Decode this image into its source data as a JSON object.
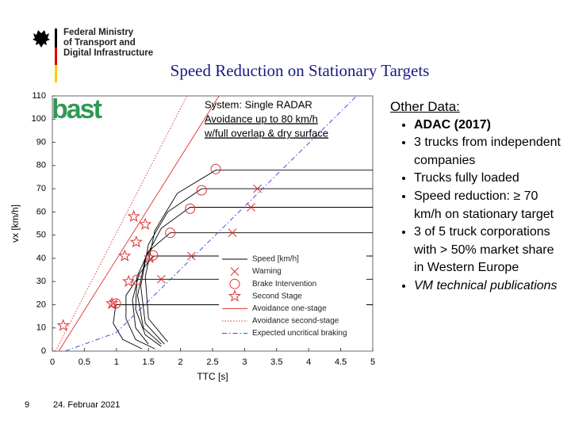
{
  "header": {
    "ministry": [
      "Federal Ministry",
      "of Transport and",
      "Digital Infrastructure"
    ],
    "title": "Speed Reduction on Stationary Targets",
    "logo": "bast"
  },
  "chart_data": {
    "type": "line",
    "annotation": [
      "System: Single RADAR",
      "Avoidance up to 80 km/h",
      "w/full overlap & dry surface"
    ],
    "xlabel": "TTC [s]",
    "ylabel": "vx [km/h]",
    "xlim": [
      0,
      5
    ],
    "xticks": [
      0,
      0.5,
      1,
      1.5,
      2,
      2.5,
      3,
      3.5,
      4,
      4.5,
      5
    ],
    "ylim": [
      0,
      110
    ],
    "yticks": [
      0,
      10,
      20,
      30,
      40,
      50,
      60,
      70,
      80,
      90,
      100,
      110
    ],
    "grid": false,
    "series": [
      {
        "name": "Speed [km/h]",
        "color": "#000000",
        "style": "solid",
        "marker": "none",
        "x": [
          5,
          2.55,
          1.95,
          1.6,
          1.45,
          1.5,
          1.8,
          null,
          5,
          2.33,
          1.8,
          1.5,
          1.38,
          1.45,
          1.75,
          null,
          5,
          2.15,
          1.7,
          1.45,
          1.33,
          1.42,
          1.7,
          null,
          5,
          1.84,
          1.5,
          1.32,
          1.3,
          1.45,
          1.7,
          null,
          5,
          1.57,
          1.35,
          1.25,
          1.3,
          1.5,
          null,
          5,
          1.32,
          1.15,
          1.15,
          1.3,
          1.6,
          null,
          5,
          0.99,
          0.95,
          1.1,
          1.4
        ],
        "values": [
          78,
          78,
          68,
          52,
          32,
          14,
          4,
          null,
          70,
          70,
          60,
          46,
          28,
          12,
          3,
          null,
          62,
          62,
          53,
          40,
          24,
          10,
          3,
          null,
          51,
          51,
          43,
          32,
          18,
          7,
          2,
          null,
          41,
          41,
          33,
          22,
          10,
          3,
          null,
          31,
          31,
          24,
          14,
          5,
          1,
          null,
          20,
          20,
          12,
          5,
          1
        ]
      },
      {
        "name": "Warning",
        "color": "#e03030",
        "style": "none",
        "marker": "x",
        "x": [
          3.2,
          3.1,
          2.81,
          2.17,
          1.7,
          0.95
        ],
        "values": [
          70,
          62,
          51,
          41,
          31,
          20.5
        ]
      },
      {
        "name": "Brake Intervention",
        "color": "#e03030",
        "style": "none",
        "marker": "circle",
        "x": [
          2.55,
          2.33,
          2.15,
          1.84,
          1.57,
          1.32,
          0.99
        ],
        "values": [
          78.5,
          69.3,
          61.4,
          51,
          41.3,
          30.7,
          20.5
        ]
      },
      {
        "name": "Second Stage",
        "color": "#e03030",
        "style": "none",
        "marker": "star",
        "x": [
          1.27,
          1.45,
          1.31,
          1.13,
          1.52,
          1.19,
          0.93,
          0.17
        ],
        "values": [
          58,
          54.6,
          47,
          41,
          40.3,
          30,
          20.5,
          11
        ]
      },
      {
        "name": "Avoidance one-stage",
        "color": "#e03030",
        "style": "solid",
        "marker": "none",
        "x": [
          0.1,
          2.6
        ],
        "values": [
          0,
          110
        ]
      },
      {
        "name": "Avoidance second-stage",
        "color": "#e03030",
        "style": "dotted",
        "marker": "none",
        "x": [
          0.05,
          2.1
        ],
        "values": [
          0,
          110
        ]
      },
      {
        "name": "Expected uncritical braking",
        "color": "#3040e0",
        "style": "dashdot",
        "marker": "none",
        "x": [
          0.2,
          1,
          4.75
        ],
        "values": [
          0,
          8,
          110
        ]
      }
    ]
  },
  "notes": {
    "heading": "Other Data:",
    "items": [
      "ADAC (2017)",
      "3 trucks from independent companies",
      "Trucks fully loaded",
      "Speed reduction: ≥ 70 km/h on stationary target",
      "3 of 5 truck corporations with > 50% market share in Western Europe",
      "VM technical publications"
    ]
  },
  "footer": {
    "page": "9",
    "date": "24. Februar 2021"
  }
}
